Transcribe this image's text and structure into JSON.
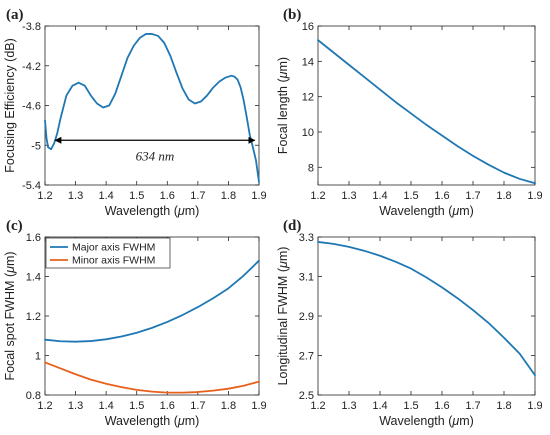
{
  "colors": {
    "blue": "#1f77b4",
    "orange": "#e8601c",
    "axis": "#262626"
  },
  "chart_data": [
    {
      "id": "a",
      "type": "line",
      "panel_label": "(a)",
      "xlabel": "Wavelength (μm)",
      "ylabel": "Focusing Efficiency (dB)",
      "xlim": [
        1.2,
        1.9
      ],
      "ylim": [
        -5.4,
        -3.8
      ],
      "xticks": [
        1.2,
        1.3,
        1.4,
        1.5,
        1.6,
        1.7,
        1.8,
        1.9
      ],
      "xtick_labels": [
        "1.2",
        "1.3",
        "1.4",
        "1.5",
        "1.6",
        "1.7",
        "1.8",
        "1.9"
      ],
      "yticks": [
        -5.4,
        -5.0,
        -4.6,
        -4.2,
        -3.8
      ],
      "ytick_labels": [
        "-5.4",
        "-5",
        "-4.6",
        "-4.2",
        "-3.8"
      ],
      "grid": false,
      "series": [
        {
          "color": "#1f77b4",
          "x": [
            1.2,
            1.205,
            1.21,
            1.22,
            1.23,
            1.24,
            1.25,
            1.27,
            1.29,
            1.31,
            1.33,
            1.35,
            1.37,
            1.39,
            1.41,
            1.43,
            1.45,
            1.47,
            1.49,
            1.51,
            1.53,
            1.55,
            1.57,
            1.59,
            1.61,
            1.63,
            1.65,
            1.67,
            1.69,
            1.71,
            1.73,
            1.75,
            1.77,
            1.79,
            1.81,
            1.82,
            1.83,
            1.84,
            1.85,
            1.86,
            1.87,
            1.88,
            1.89,
            1.9
          ],
          "y": [
            -4.75,
            -4.93,
            -5.02,
            -5.04,
            -4.98,
            -4.88,
            -4.74,
            -4.5,
            -4.4,
            -4.37,
            -4.4,
            -4.5,
            -4.58,
            -4.62,
            -4.6,
            -4.48,
            -4.3,
            -4.12,
            -4.0,
            -3.92,
            -3.88,
            -3.88,
            -3.9,
            -3.97,
            -4.1,
            -4.27,
            -4.43,
            -4.54,
            -4.58,
            -4.56,
            -4.5,
            -4.42,
            -4.36,
            -4.32,
            -4.3,
            -4.31,
            -4.34,
            -4.42,
            -4.55,
            -4.72,
            -4.9,
            -5.02,
            -5.15,
            -5.37
          ]
        }
      ],
      "annotation": {
        "text": "634 nm",
        "x_start": 1.233,
        "x_end": 1.886,
        "y": -4.95
      }
    },
    {
      "id": "b",
      "type": "line",
      "panel_label": "(b)",
      "xlabel": "Wavelength (μm)",
      "ylabel": "Focal length (μm)",
      "xlim": [
        1.2,
        1.9
      ],
      "ylim": [
        7,
        16
      ],
      "xticks": [
        1.2,
        1.3,
        1.4,
        1.5,
        1.6,
        1.7,
        1.8,
        1.9
      ],
      "xtick_labels": [
        "1.2",
        "1.3",
        "1.4",
        "1.5",
        "1.6",
        "1.7",
        "1.8",
        "1.9"
      ],
      "yticks": [
        8,
        10,
        12,
        14,
        16
      ],
      "ytick_labels": [
        "8",
        "10",
        "12",
        "14",
        "16"
      ],
      "grid": false,
      "series": [
        {
          "color": "#1f77b4",
          "x": [
            1.2,
            1.25,
            1.3,
            1.35,
            1.4,
            1.45,
            1.5,
            1.55,
            1.6,
            1.65,
            1.7,
            1.75,
            1.8,
            1.85,
            1.9
          ],
          "y": [
            15.2,
            14.5,
            13.8,
            13.1,
            12.4,
            11.7,
            11.05,
            10.4,
            9.8,
            9.2,
            8.65,
            8.15,
            7.7,
            7.35,
            7.1
          ]
        }
      ]
    },
    {
      "id": "c",
      "type": "line",
      "panel_label": "(c)",
      "xlabel": "Wavelength (μm)",
      "ylabel": "Focal spot FWHM (μm)",
      "xlim": [
        1.2,
        1.9
      ],
      "ylim": [
        0.8,
        1.6
      ],
      "xticks": [
        1.2,
        1.3,
        1.4,
        1.5,
        1.6,
        1.7,
        1.8,
        1.9
      ],
      "xtick_labels": [
        "1.2",
        "1.3",
        "1.4",
        "1.5",
        "1.6",
        "1.7",
        "1.8",
        "1.9"
      ],
      "yticks": [
        0.8,
        1.0,
        1.2,
        1.4,
        1.6
      ],
      "ytick_labels": [
        "0.8",
        "1",
        "1.2",
        "1.4",
        "1.6"
      ],
      "grid": false,
      "legend": "top-left",
      "series": [
        {
          "name": "Major axis FWHM",
          "color": "#1f77b4",
          "x": [
            1.2,
            1.25,
            1.3,
            1.35,
            1.4,
            1.45,
            1.5,
            1.55,
            1.6,
            1.65,
            1.7,
            1.75,
            1.8,
            1.85,
            1.9
          ],
          "y": [
            1.08,
            1.072,
            1.07,
            1.073,
            1.082,
            1.096,
            1.115,
            1.14,
            1.17,
            1.205,
            1.245,
            1.29,
            1.34,
            1.405,
            1.48
          ]
        },
        {
          "name": "Minor axis FWHM",
          "color": "#e8601c",
          "x": [
            1.2,
            1.25,
            1.3,
            1.35,
            1.4,
            1.45,
            1.5,
            1.55,
            1.6,
            1.65,
            1.7,
            1.75,
            1.8,
            1.85,
            1.9
          ],
          "y": [
            0.965,
            0.935,
            0.905,
            0.878,
            0.857,
            0.84,
            0.826,
            0.817,
            0.812,
            0.812,
            0.815,
            0.822,
            0.832,
            0.847,
            0.868
          ]
        }
      ]
    },
    {
      "id": "d",
      "type": "line",
      "panel_label": "(d)",
      "xlabel": "Wavelength (μm)",
      "ylabel": "Longitudinal FWHM (μm)",
      "xlim": [
        1.2,
        1.9
      ],
      "ylim": [
        2.5,
        3.3
      ],
      "xticks": [
        1.2,
        1.3,
        1.4,
        1.5,
        1.6,
        1.7,
        1.8,
        1.9
      ],
      "xtick_labels": [
        "1.2",
        "1.3",
        "1.4",
        "1.5",
        "1.6",
        "1.7",
        "1.8",
        "1.9"
      ],
      "yticks": [
        2.5,
        2.7,
        2.9,
        3.1,
        3.3
      ],
      "ytick_labels": [
        "2.5",
        "2.7",
        "2.9",
        "3.1",
        "3.3"
      ],
      "grid": false,
      "series": [
        {
          "color": "#1f77b4",
          "x": [
            1.2,
            1.25,
            1.3,
            1.35,
            1.4,
            1.45,
            1.5,
            1.55,
            1.6,
            1.65,
            1.7,
            1.75,
            1.8,
            1.85,
            1.9
          ],
          "y": [
            3.275,
            3.265,
            3.25,
            3.23,
            3.205,
            3.175,
            3.14,
            3.095,
            3.045,
            2.99,
            2.93,
            2.865,
            2.79,
            2.71,
            2.6
          ]
        }
      ]
    }
  ]
}
